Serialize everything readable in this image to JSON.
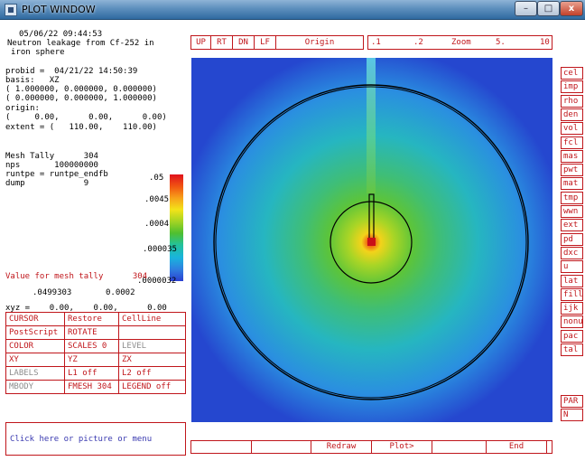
{
  "window": {
    "title": "PLOT WINDOW",
    "min_glyph": "–",
    "max_glyph": "□",
    "close_glyph": "x",
    "icon": "app-icon"
  },
  "info": {
    "datetime": "05/06/22 09:44:53",
    "desc1": "Neutron leakage from Cf-252 in",
    "desc2": "iron sphere",
    "probid": "probid =  04/21/22 14:50:39",
    "basis": "basis:   XZ",
    "basis_v1": "( 1.000000, 0.000000, 0.000000)",
    "basis_v2": "( 0.000000, 0.000000, 1.000000)",
    "origin_label": "origin:",
    "origin_val": "(     0.00,      0.00,      0.00)",
    "extent": "extent = (   110.00,    110.00)",
    "mesh_tally": "Mesh Tally      304",
    "nps": "nps       100000000",
    "runtpe": "runtpe = runtpe_endfb",
    "dump": "dump            9"
  },
  "colorbar": {
    "labels": [
      ".05",
      ".0045",
      ".0004",
      ".000035",
      ".0000032"
    ],
    "colors": [
      "#e0111c",
      "#f7a11a",
      "#f3e319",
      "#4fbf2f",
      "#19b4dd",
      "#2b40d1"
    ]
  },
  "value": {
    "label": "Value for mesh tally      304",
    "val1": ".0499303",
    "val2": "0.0002",
    "xyz": "xyz =    0.00,    0.00,      0.00"
  },
  "commands": [
    [
      "CURSOR",
      "Restore",
      "CellLine"
    ],
    [
      "PostScript",
      "ROTATE",
      ""
    ],
    [
      "COLOR",
      "SCALES 0",
      "LEVEL"
    ],
    [
      "XY",
      "YZ",
      "ZX"
    ],
    [
      "LABELS",
      "L1 off",
      "L2 off"
    ],
    [
      "MBODY",
      "FMESH  304",
      "LEGEND off"
    ]
  ],
  "message": "Click here or picture or menu",
  "toolbar": {
    "up": "UP",
    "rt": "RT",
    "dn": "DN",
    "lf": "LF",
    "origin": "Origin",
    "z1": ".1",
    "z2": ".2",
    "zoom": "Zoom",
    "z5": "5.",
    "z10": "10"
  },
  "right_menu": [
    "cel",
    "imp",
    "rho",
    "den",
    "vol",
    "fcl",
    "mas",
    "pwt",
    "mat",
    "tmp",
    "wwn",
    "ext",
    "pd",
    "dxc",
    "u",
    "lat",
    "fill",
    "ijk",
    "nonu",
    "pac",
    "tal"
  ],
  "right_bottom": [
    "PAR",
    "N"
  ],
  "bottom_bar": [
    "",
    "",
    "Redraw",
    "Plot>",
    "",
    "End",
    ""
  ]
}
